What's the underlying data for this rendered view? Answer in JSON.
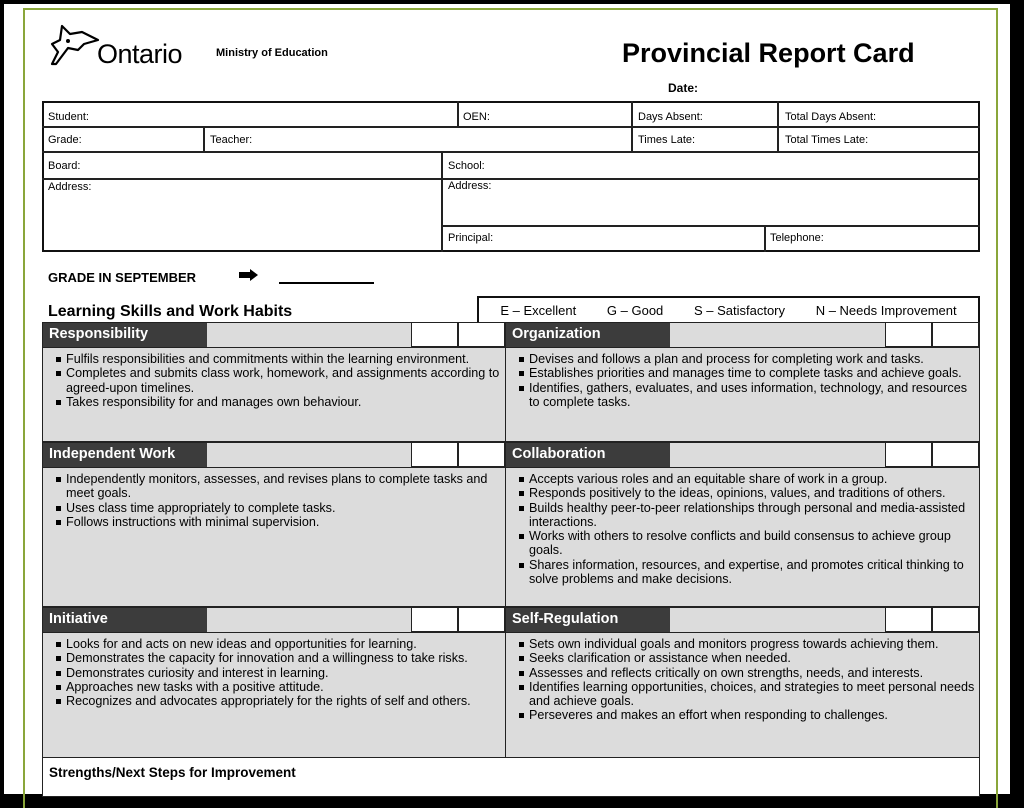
{
  "header": {
    "logo_text": "Ontario",
    "ministry": "Ministry of Education",
    "title": "Provincial Report Card",
    "date_label": "Date:"
  },
  "info": {
    "student": "Student:",
    "oen": "OEN:",
    "days_absent": "Days Absent:",
    "total_days_absent": "Total Days Absent:",
    "grade": "Grade:",
    "teacher": "Teacher:",
    "times_late": "Times Late:",
    "total_times_late": "Total Times Late:",
    "board": "Board:",
    "school": "School:",
    "board_address": "Address:",
    "school_address": "Address:",
    "principal": "Principal:",
    "telephone": "Telephone:"
  },
  "grade_september": "GRADE IN SEPTEMBER",
  "skills_title": "Learning Skills and Work Habits",
  "legend": [
    "E – Excellent",
    "G – Good",
    "S – Satisfactory",
    "N – Needs Improvement"
  ],
  "skills": [
    {
      "title": "Responsibility",
      "items": [
        "Fulfils responsibilities and commitments within the learning environment.",
        "Completes and submits class work, homework, and assignments according to agreed-upon timelines.",
        "Takes responsibility for and manages own behaviour."
      ]
    },
    {
      "title": "Organization",
      "items": [
        "Devises and follows a plan and process for completing work and tasks.",
        "Establishes priorities and manages time to complete tasks and achieve goals.",
        "Identifies, gathers, evaluates, and uses information, technology, and resources to complete tasks."
      ]
    },
    {
      "title": "Independent Work",
      "items": [
        "Independently monitors, assesses, and revises plans to complete tasks and meet goals.",
        "Uses class time appropriately to complete tasks.",
        "Follows instructions with minimal supervision."
      ]
    },
    {
      "title": "Collaboration",
      "items": [
        "Accepts various roles and an equitable share of work in a group.",
        "Responds positively to the ideas, opinions, values, and traditions of others.",
        "Builds healthy peer-to-peer relationships through personal and media-assisted interactions.",
        "Works with others to resolve conflicts and build consensus to achieve group goals.",
        "Shares information, resources, and expertise, and promotes critical thinking to solve problems and make decisions."
      ]
    },
    {
      "title": "Initiative",
      "items": [
        "Looks for and acts on new ideas and opportunities for learning.",
        "Demonstrates the capacity for innovation and a willingness to take risks.",
        "Demonstrates curiosity and interest in learning.",
        "Approaches new tasks with a positive attitude.",
        "Recognizes and advocates appropriately for the rights of self and others."
      ]
    },
    {
      "title": "Self-Regulation",
      "items": [
        "Sets own individual goals and monitors progress towards achieving them.",
        "Seeks clarification or assistance when needed.",
        "Assesses and reflects critically on own strengths, needs, and interests.",
        "Identifies learning opportunities, choices, and strategies to meet personal needs and achieve goals.",
        "Perseveres and makes an effort when responding to challenges."
      ]
    }
  ],
  "strengths_title": "Strengths/Next Steps for Improvement"
}
